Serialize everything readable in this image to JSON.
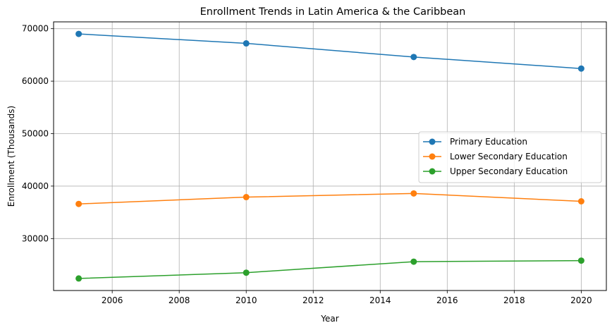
{
  "chart_data": {
    "type": "line",
    "title": "Enrollment Trends in Latin America & the Caribbean",
    "xlabel": "Year",
    "ylabel": "Enrollment (Thousands)",
    "x": [
      2005,
      2010,
      2015,
      2020
    ],
    "xlim": [
      2004.25,
      2020.75
    ],
    "ylim": [
      20100,
      71300
    ],
    "xticks": [
      2006,
      2008,
      2010,
      2012,
      2014,
      2016,
      2018,
      2020
    ],
    "yticks": [
      30000,
      40000,
      50000,
      60000,
      70000
    ],
    "grid": true,
    "legend_position": "center-right",
    "series": [
      {
        "name": "Primary Education",
        "color": "#1f77b4",
        "values": [
          69000,
          67200,
          64600,
          62400
        ]
      },
      {
        "name": "Lower Secondary Education",
        "color": "#ff7f0e",
        "values": [
          36600,
          37900,
          38600,
          37100
        ]
      },
      {
        "name": "Upper Secondary Education",
        "color": "#2ca02c",
        "values": [
          22400,
          23500,
          25600,
          25800
        ]
      }
    ]
  }
}
